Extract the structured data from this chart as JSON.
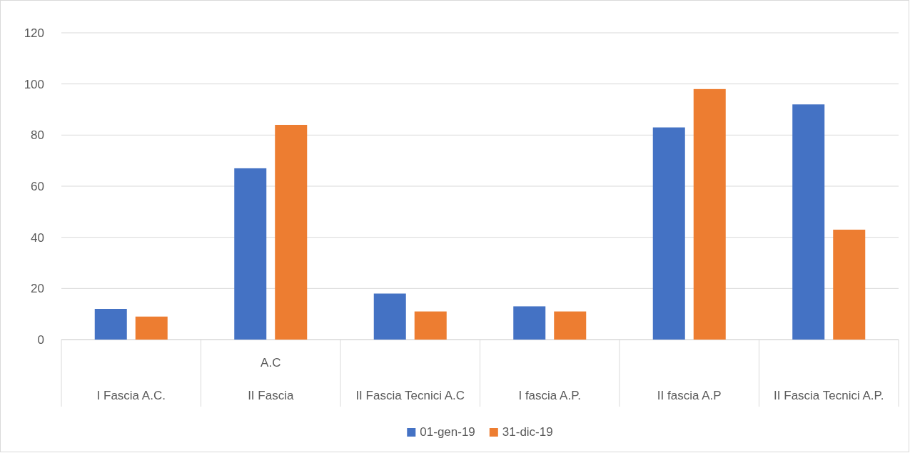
{
  "chart_data": {
    "type": "bar",
    "categories": [
      "I Fascia A.C.",
      "A.C\nII Fascia",
      "II Fascia Tecnici A.C",
      "I fascia A.P.",
      "II fascia A.P",
      "II Fascia Tecnici A.P."
    ],
    "series": [
      {
        "name": "01-gen-19",
        "color": "#4472c4",
        "values": [
          12,
          67,
          18,
          13,
          83,
          92
        ]
      },
      {
        "name": "31-dic-19",
        "color": "#ed7d31",
        "values": [
          9,
          84,
          11,
          11,
          98,
          43
        ]
      }
    ],
    "ylim": [
      0,
      120
    ],
    "yticks": [
      0,
      20,
      40,
      60,
      80,
      100,
      120
    ],
    "grid": "y",
    "legend": "bottom"
  }
}
